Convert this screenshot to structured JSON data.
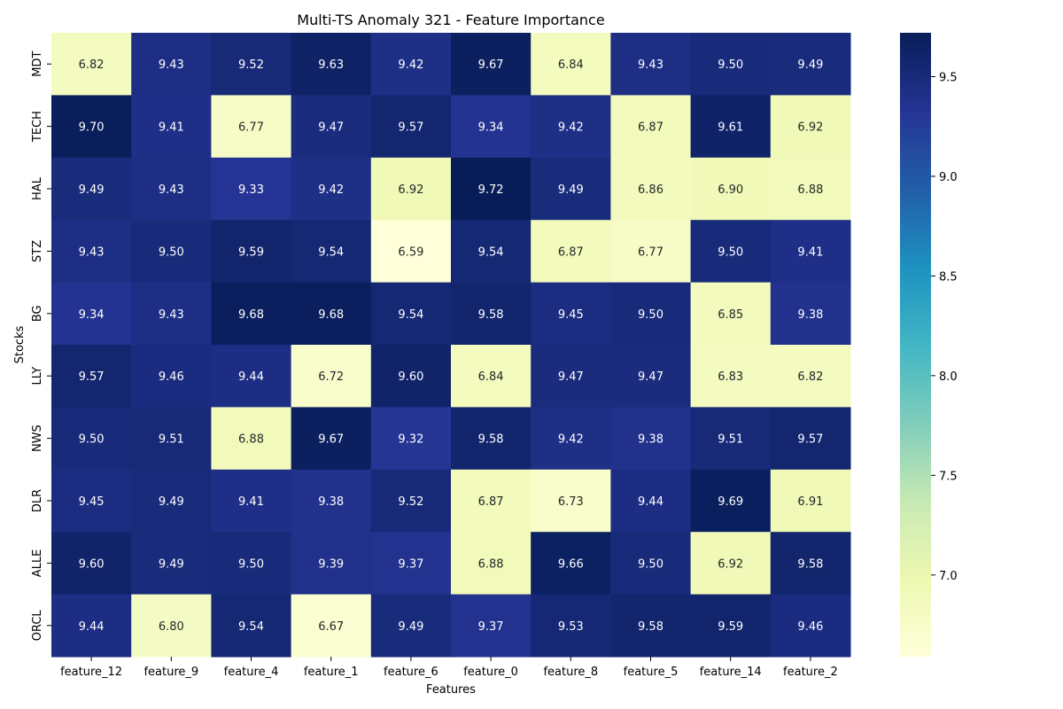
{
  "chart_data": {
    "type": "heatmap",
    "title": "Multi-TS Anomaly 321 - Feature Importance",
    "xlabel": "Features",
    "ylabel": "Stocks",
    "columns": [
      "feature_12",
      "feature_9",
      "feature_4",
      "feature_1",
      "feature_6",
      "feature_0",
      "feature_8",
      "feature_5",
      "feature_14",
      "feature_2"
    ],
    "rows": [
      "MDT",
      "TECH",
      "HAL",
      "STZ",
      "BG",
      "LLY",
      "NWS",
      "DLR",
      "ALLE",
      "ORCL"
    ],
    "values": [
      [
        6.82,
        9.43,
        9.52,
        9.63,
        9.42,
        9.67,
        6.84,
        9.43,
        9.5,
        9.49
      ],
      [
        9.7,
        9.41,
        6.77,
        9.47,
        9.57,
        9.34,
        9.42,
        6.87,
        9.61,
        6.92
      ],
      [
        9.49,
        9.43,
        9.33,
        9.42,
        6.92,
        9.72,
        9.49,
        6.86,
        6.9,
        6.88
      ],
      [
        9.43,
        9.5,
        9.59,
        9.54,
        6.59,
        9.54,
        6.87,
        6.77,
        9.5,
        9.41
      ],
      [
        9.34,
        9.43,
        9.68,
        9.68,
        9.54,
        9.58,
        9.45,
        9.5,
        6.85,
        9.38
      ],
      [
        9.57,
        9.46,
        9.44,
        6.72,
        9.6,
        6.84,
        9.47,
        9.47,
        6.83,
        6.82
      ],
      [
        9.5,
        9.51,
        6.88,
        9.67,
        9.32,
        9.58,
        9.42,
        9.38,
        9.51,
        9.57
      ],
      [
        9.45,
        9.49,
        9.41,
        9.38,
        9.52,
        6.87,
        6.73,
        9.44,
        9.69,
        6.91
      ],
      [
        9.6,
        9.49,
        9.5,
        9.39,
        9.37,
        6.88,
        9.66,
        9.5,
        6.92,
        9.58
      ],
      [
        9.44,
        6.8,
        9.54,
        6.67,
        9.49,
        9.37,
        9.53,
        9.58,
        9.59,
        9.46
      ]
    ],
    "value_format": "2 decimals",
    "colormap": "YlGnBu",
    "colormap_stops": [
      "#ffffd9",
      "#edf8b1",
      "#c7e9b4",
      "#7fcdbb",
      "#41b6c4",
      "#1d91c0",
      "#225ea8",
      "#253494",
      "#081d58"
    ],
    "vmin": 6.59,
    "vmax": 9.72,
    "colorbar_ticks": [
      7.0,
      7.5,
      8.0,
      8.5,
      9.0,
      9.5
    ],
    "colorbar_tick_labels": [
      "7.0",
      "7.5",
      "8.0",
      "8.5",
      "9.0",
      "9.5"
    ],
    "grid": false,
    "colorbar_position": "right"
  }
}
